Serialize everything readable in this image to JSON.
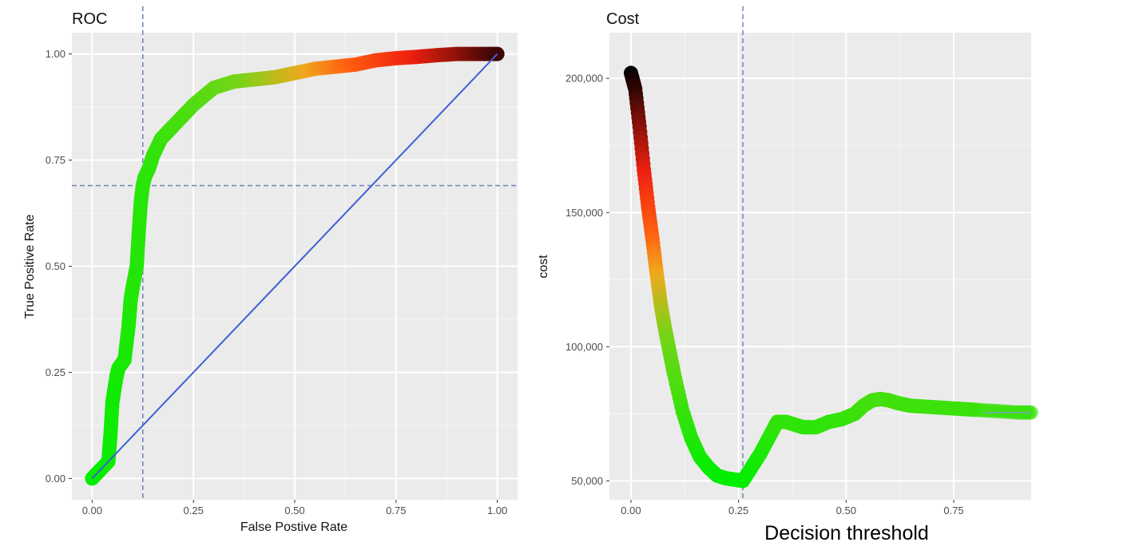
{
  "chart_data": [
    {
      "type": "line",
      "title": "ROC",
      "xlabel": "False Postive Rate",
      "ylabel": "True Positive Rate",
      "xlim": [
        -0.05,
        1.05
      ],
      "ylim": [
        -0.05,
        1.05
      ],
      "x_ticks": [
        "0.00",
        "0.25",
        "0.50",
        "0.75",
        "1.00"
      ],
      "y_ticks": [
        "0.00",
        "0.25",
        "0.50",
        "0.75",
        "1.00"
      ],
      "grid": true,
      "reference_lines": {
        "vline_x": 0.125,
        "hline_y": 0.69,
        "diagonal": [
          [
            0,
            0
          ],
          [
            1,
            1
          ]
        ]
      },
      "series": [
        {
          "x": [
            0.0,
            0.02,
            0.04,
            0.045,
            0.05,
            0.06,
            0.065,
            0.08,
            0.09,
            0.095,
            0.1,
            0.11,
            0.115,
            0.12,
            0.125,
            0.13,
            0.14,
            0.15,
            0.17,
            0.19,
            0.21,
            0.25,
            0.3,
            0.35,
            0.4,
            0.45,
            0.5,
            0.55,
            0.6,
            0.65,
            0.7,
            0.75,
            0.8,
            0.85,
            0.9,
            0.95,
            1.0
          ],
          "y": [
            0.0,
            0.02,
            0.04,
            0.1,
            0.18,
            0.24,
            0.26,
            0.28,
            0.36,
            0.42,
            0.45,
            0.5,
            0.58,
            0.65,
            0.69,
            0.71,
            0.73,
            0.76,
            0.8,
            0.82,
            0.84,
            0.88,
            0.92,
            0.935,
            0.94,
            0.945,
            0.955,
            0.965,
            0.97,
            0.975,
            0.985,
            0.99,
            0.993,
            0.997,
            1.0,
            1.0,
            1.0
          ]
        }
      ]
    },
    {
      "type": "line",
      "title": "Cost",
      "xlabel": "Decision threshold",
      "ylabel": "cost",
      "xlim": [
        -0.05,
        0.93
      ],
      "ylim": [
        43000,
        217000
      ],
      "x_ticks": [
        "0.00",
        "0.25",
        "0.50",
        "0.75"
      ],
      "y_ticks": [
        "50,000",
        "100,000",
        "150,000",
        "200,000"
      ],
      "grid": true,
      "reference_lines": {
        "vline_x": 0.26
      },
      "series": [
        {
          "x": [
            0.0,
            0.01,
            0.02,
            0.03,
            0.04,
            0.05,
            0.06,
            0.07,
            0.08,
            0.09,
            0.1,
            0.12,
            0.14,
            0.16,
            0.18,
            0.2,
            0.22,
            0.24,
            0.26,
            0.28,
            0.3,
            0.32,
            0.34,
            0.36,
            0.38,
            0.4,
            0.43,
            0.46,
            0.49,
            0.52,
            0.54,
            0.56,
            0.58,
            0.6,
            0.62,
            0.65,
            0.7,
            0.75,
            0.8,
            0.85,
            0.9,
            0.93
          ],
          "y": [
            202000,
            196000,
            182000,
            166000,
            152000,
            140000,
            127000,
            115000,
            106000,
            98000,
            90000,
            76000,
            66000,
            59000,
            55000,
            52000,
            51000,
            50500,
            50000,
            55000,
            60000,
            66000,
            72000,
            72000,
            71000,
            70000,
            70000,
            72000,
            73000,
            75000,
            78000,
            80000,
            80500,
            80000,
            79000,
            78000,
            77500,
            77000,
            76500,
            76000,
            75500,
            75500
          ]
        }
      ]
    }
  ]
}
